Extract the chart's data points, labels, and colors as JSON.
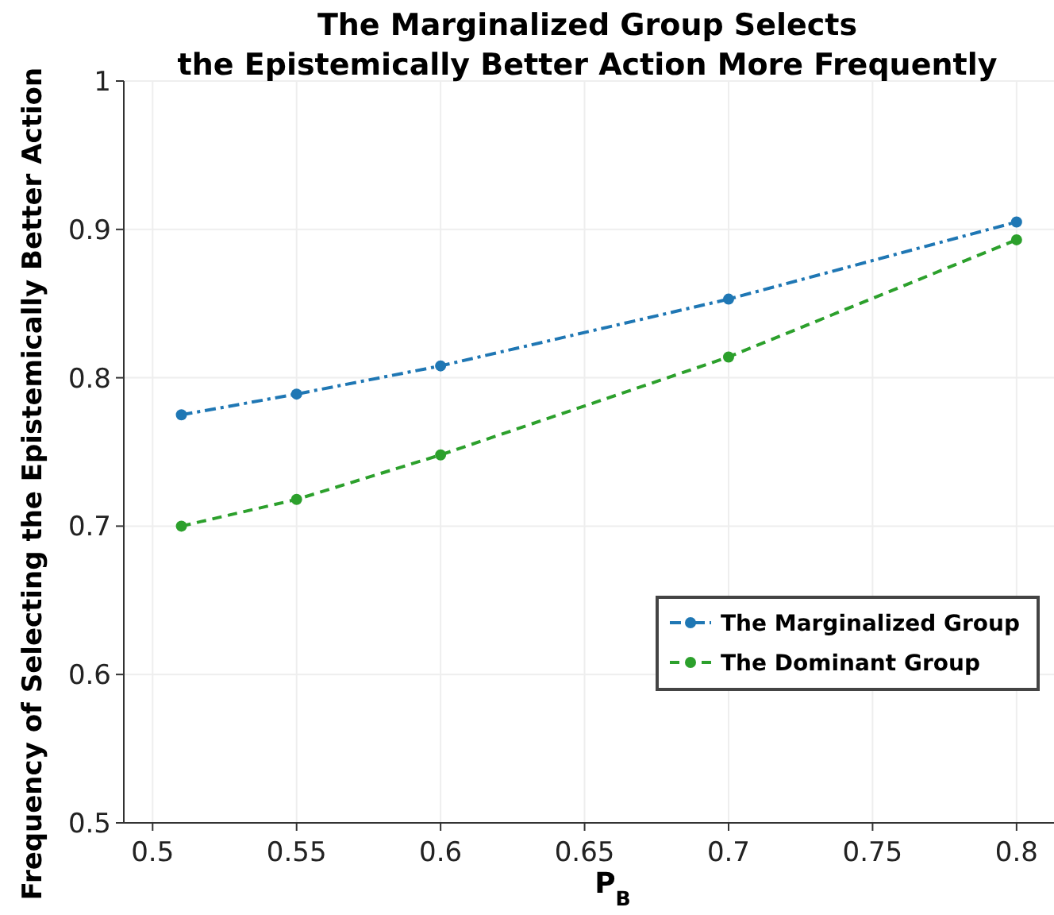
{
  "chart_data": {
    "type": "line",
    "title": "The Marginalized Group Selects\nthe Epistemically Better Action More Frequently",
    "xlabel": "P$_{B}$",
    "ylabel": "Frequency of Selecting the Epistemically Better Action",
    "x": [
      0.51,
      0.55,
      0.6,
      0.7,
      0.8
    ],
    "series": [
      {
        "name": "The Marginalized Group",
        "color": "#1f77b4",
        "line_style": "dashdot",
        "values": [
          0.775,
          0.789,
          0.808,
          0.853,
          0.905
        ]
      },
      {
        "name": "The Dominant Group",
        "color": "#2ca02c",
        "line_style": "dashed",
        "values": [
          0.7,
          0.718,
          0.748,
          0.814,
          0.893
        ]
      }
    ],
    "xlim": [
      0.49,
      0.813
    ],
    "xticks": [
      0.5,
      0.55,
      0.6,
      0.65,
      0.7,
      0.75,
      0.8
    ],
    "ylim": [
      0.5,
      1
    ],
    "yticks": [
      0.5,
      0.6,
      0.7,
      0.8,
      0.9,
      1
    ],
    "grid": true,
    "legend": "bottom right",
    "marker": "circle"
  }
}
